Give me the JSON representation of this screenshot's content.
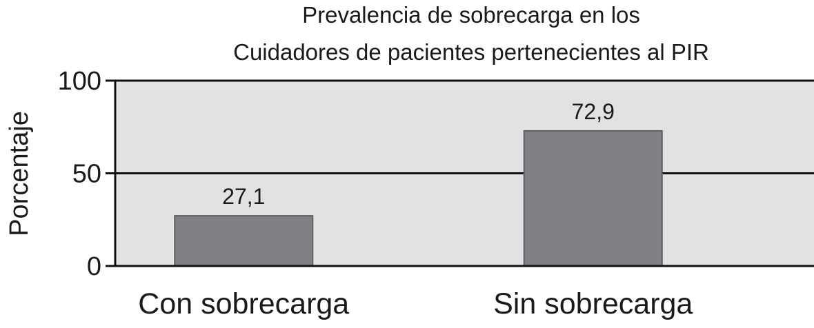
{
  "chart_data": {
    "type": "bar",
    "title": "Prevalencia de sobrecarga en los",
    "subtitle": "Cuidadores de pacientes pertenecientes al PIR",
    "ylabel": "Porcentaje",
    "xlabel": "",
    "categories": [
      "Con sobrecarga",
      "Sin sobrecarga"
    ],
    "values": [
      27.1,
      72.9
    ],
    "value_labels": [
      "27,1",
      "72,9"
    ],
    "ylim": [
      0,
      100
    ],
    "yticks": [
      0,
      50,
      100
    ],
    "ytick_labels": [
      "0",
      "50",
      "100"
    ],
    "grid": true,
    "legend": "none",
    "colors": {
      "plot_background": "#e2e2e2",
      "bar_fill": "#808084",
      "bar_stroke": "#5f5f63",
      "axis": "#111111",
      "text": "#1a1a1a"
    }
  }
}
